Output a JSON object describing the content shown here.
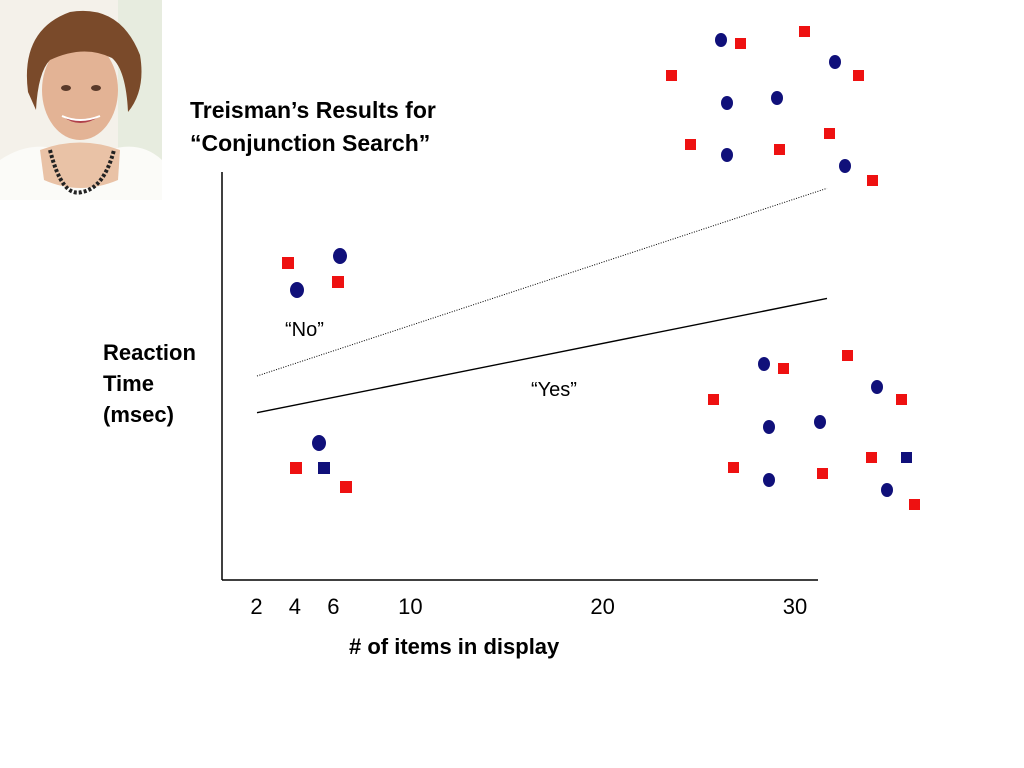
{
  "slide": {
    "title_line1": "Treisman’s Results for",
    "title_line2": "“Conjunction Search”",
    "photo_icon": "portrait-photo"
  },
  "chart_data": {
    "type": "line",
    "xlabel": "# of items in display",
    "ylabel_lines": [
      "Reaction",
      "Time",
      "(msec)"
    ],
    "x_ticks": [
      2,
      4,
      6,
      10,
      20,
      30
    ],
    "xlim": [
      0,
      32
    ],
    "y_tick_labels": false,
    "series": [
      {
        "name": "“No”",
        "style": "dotted",
        "x": [
          2,
          32
        ],
        "y": [
          0.5,
          0.96
        ]
      },
      {
        "name": "“Yes”",
        "style": "solid",
        "x": [
          2,
          32
        ],
        "y": [
          0.41,
          0.69
        ]
      }
    ],
    "annotations": [
      {
        "text": "“No”"
      },
      {
        "text": "“Yes”"
      }
    ],
    "colors": {
      "red": "#ee1111",
      "navy": "#10107a",
      "axis": "#000000"
    }
  }
}
